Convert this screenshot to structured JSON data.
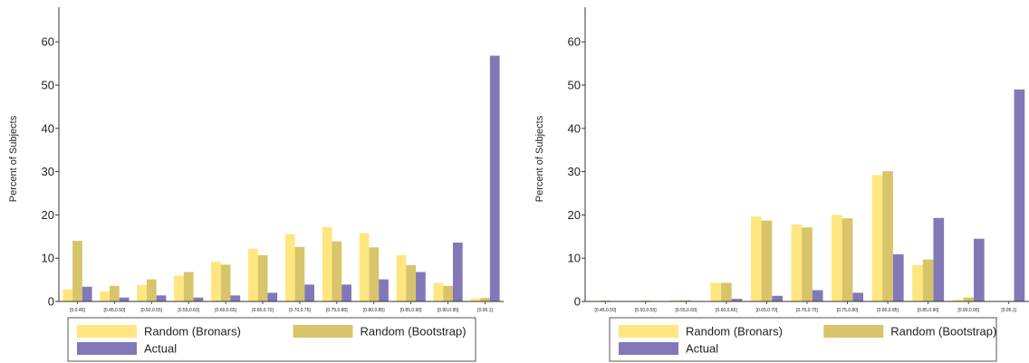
{
  "colors": {
    "random_bronars": "#ffe680",
    "random_bootstrap": "#d8c46a",
    "actual": "#8278b8",
    "axis": "#333333",
    "legend_border": "#555555"
  },
  "chart_data": [
    {
      "type": "bar",
      "ylabel": "Percent of Subjects",
      "xlabel": "",
      "ylim": [
        0,
        68
      ],
      "yticks": [
        0,
        10,
        20,
        30,
        40,
        50,
        60
      ],
      "grid": false,
      "legend_position": "bottom",
      "categories": [
        "[0,0.45]",
        "[0.45,0.50]",
        "[0.50,0.55]",
        "[0.55,0.60]",
        "[0.60,0.65]",
        "[0.65,0.70]",
        "[0.70,0.75]",
        "[0.75,0.80]",
        "[0.80,0.85]",
        "[0.85,0.90]",
        "[0.90,0.95]",
        "[0.95,1]"
      ],
      "series": [
        {
          "name": "Random (Bronars)",
          "values": [
            2.8,
            2.3,
            3.8,
            6.0,
            9.2,
            12.2,
            15.6,
            17.2,
            15.8,
            10.7,
            4.3,
            0.7
          ]
        },
        {
          "name": "Random (Bootstrap)",
          "values": [
            14.0,
            3.6,
            5.1,
            6.8,
            8.5,
            10.7,
            12.6,
            13.9,
            12.5,
            8.4,
            3.6,
            0.8
          ]
        },
        {
          "name": "Actual",
          "values": [
            3.4,
            0.9,
            1.4,
            0.9,
            1.4,
            2.0,
            3.9,
            3.9,
            5.1,
            6.8,
            13.6,
            56.8
          ]
        }
      ]
    },
    {
      "type": "bar",
      "ylabel": "Percent of Subjects",
      "xlabel": "",
      "ylim": [
        0,
        68
      ],
      "yticks": [
        0,
        10,
        20,
        30,
        40,
        50,
        60
      ],
      "grid": false,
      "legend_position": "bottom",
      "categories": [
        "[0.45,0.50]",
        "[0.50,0.55]",
        "[0.55,0.60]",
        "[0.60,0.65]",
        "[0.65,0.70]",
        "[0.70,0.75]",
        "[0.75,0.80]",
        "[0.80,0.85]",
        "[0.85,0.90]",
        "[0.90,0.95]",
        "[0.95,1]"
      ],
      "series": [
        {
          "name": "Random (Bronars)",
          "values": [
            0.1,
            0.1,
            0.3,
            4.3,
            19.6,
            17.8,
            20.0,
            29.2,
            8.4,
            0.4,
            0.1
          ]
        },
        {
          "name": "Random (Bootstrap)",
          "values": [
            0.2,
            0.2,
            0.3,
            4.3,
            18.7,
            17.1,
            19.2,
            30.1,
            9.7,
            0.9,
            0.1
          ]
        },
        {
          "name": "Actual",
          "values": [
            0.0,
            0.0,
            0.0,
            0.6,
            1.3,
            2.6,
            2.0,
            10.9,
            19.3,
            14.5,
            49.0
          ]
        }
      ]
    }
  ]
}
